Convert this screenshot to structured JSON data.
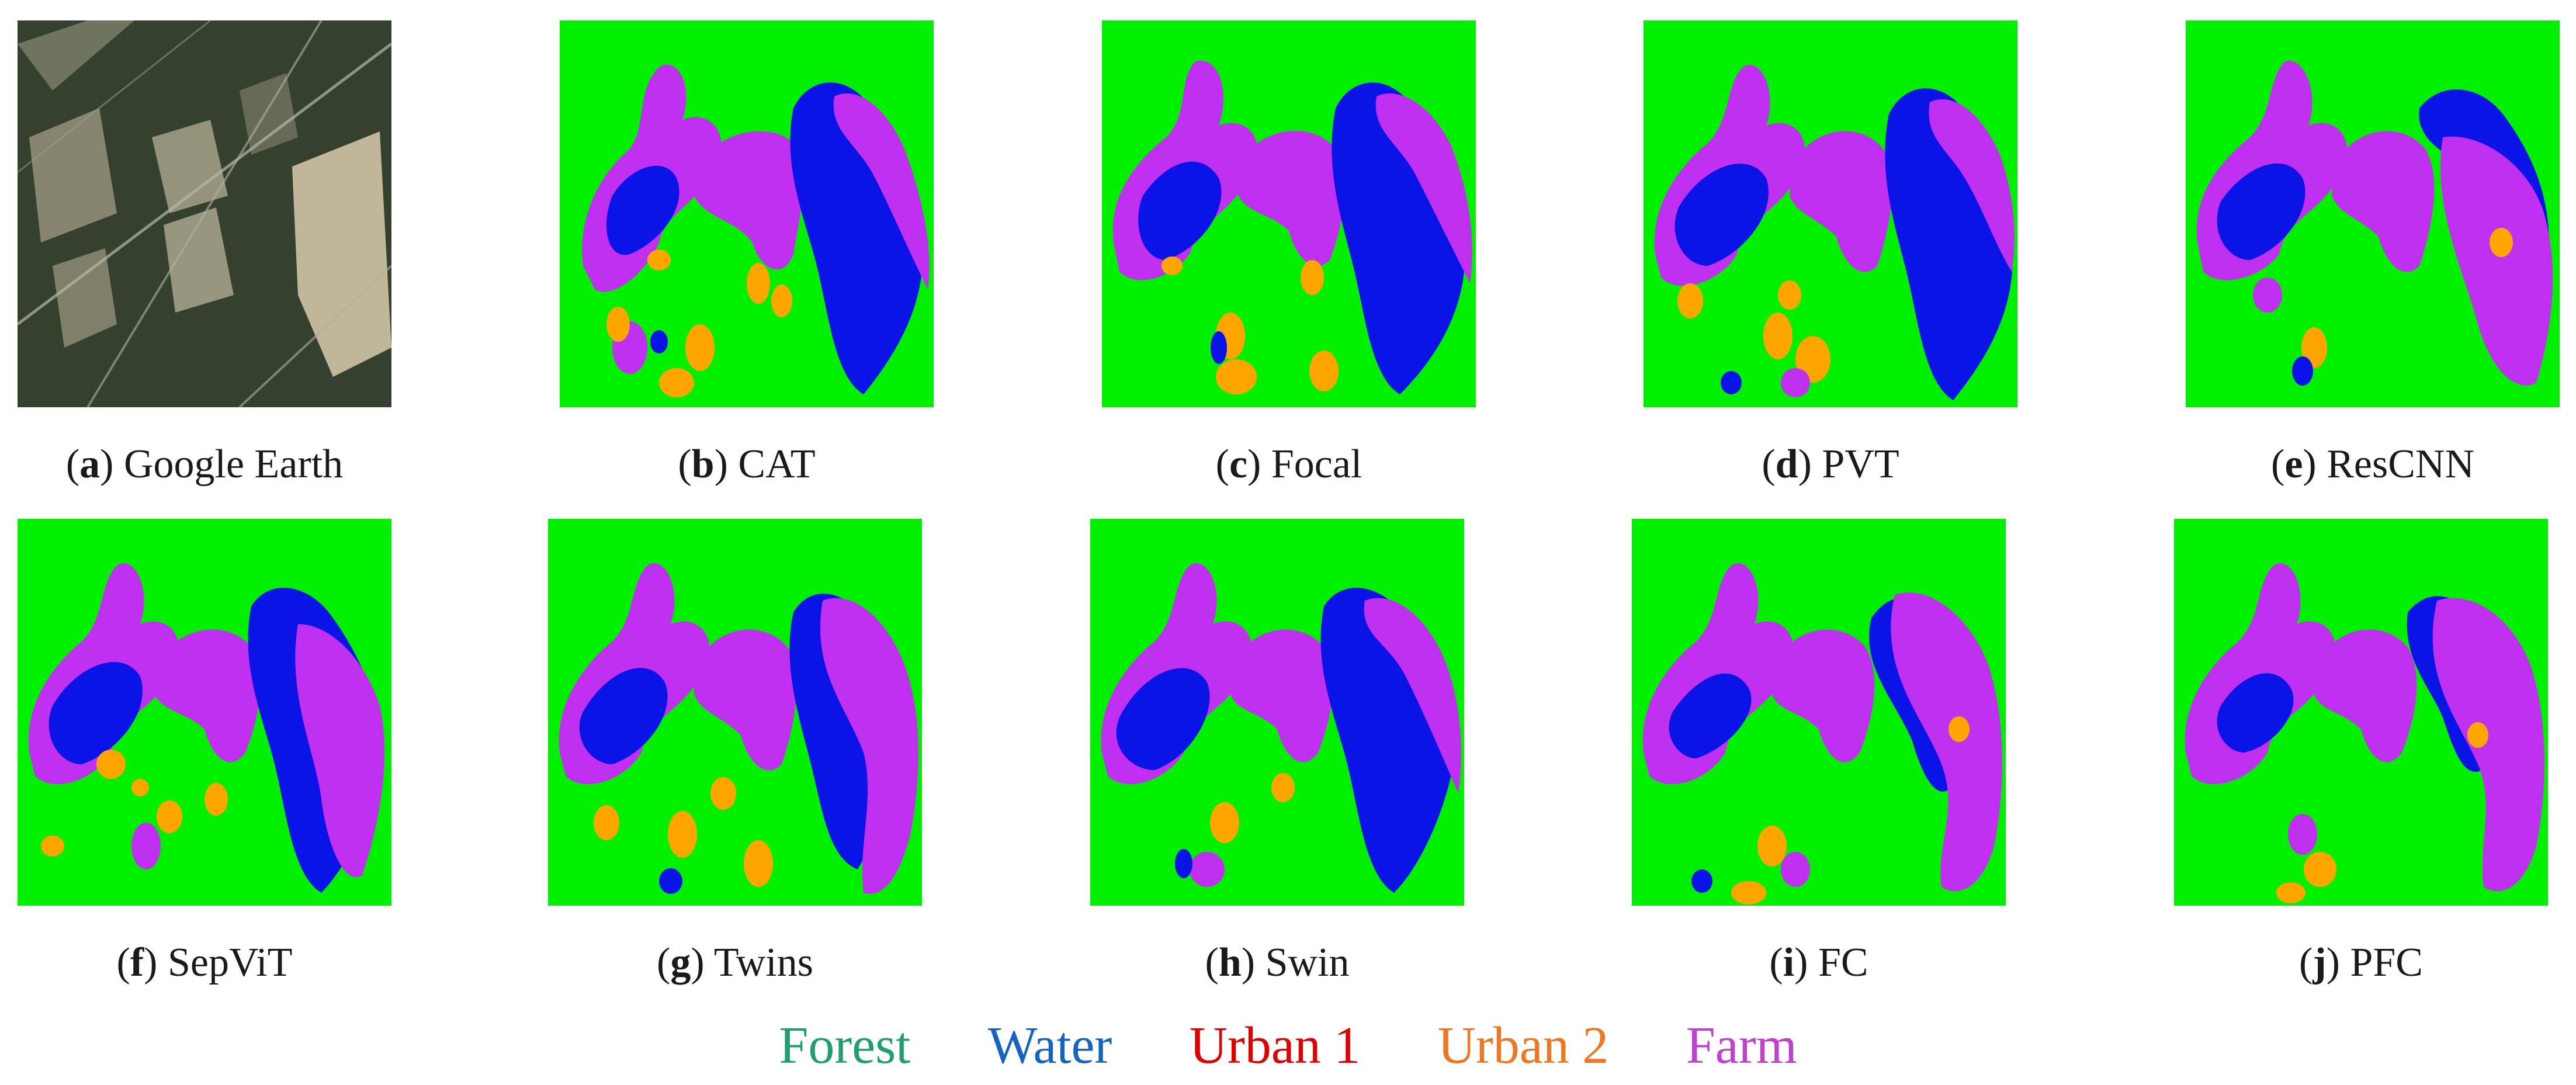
{
  "panels": [
    {
      "letter": "a",
      "title": "Google Earth",
      "kind": "satellite"
    },
    {
      "letter": "b",
      "title": "CAT",
      "kind": "map"
    },
    {
      "letter": "c",
      "title": "Focal",
      "kind": "map"
    },
    {
      "letter": "d",
      "title": "PVT",
      "kind": "map"
    },
    {
      "letter": "e",
      "title": "ResCNN",
      "kind": "map"
    },
    {
      "letter": "f",
      "title": "SepViT",
      "kind": "map"
    },
    {
      "letter": "g",
      "title": "Twins",
      "kind": "map"
    },
    {
      "letter": "h",
      "title": "Swin",
      "kind": "map"
    },
    {
      "letter": "i",
      "title": "FC",
      "kind": "map"
    },
    {
      "letter": "j",
      "title": "PFC",
      "kind": "map"
    }
  ],
  "legend": [
    {
      "label": "Forest",
      "color": "#1f9e6e"
    },
    {
      "label": "Water",
      "color": "#1565c0"
    },
    {
      "label": "Urban 1",
      "color": "#e00000"
    },
    {
      "label": "Urban 2",
      "color": "#ee7722"
    },
    {
      "label": "Farm",
      "color": "#c040d0"
    }
  ],
  "map_colors": {
    "forest": "#00f000",
    "water": "#0a14e6",
    "farm": "#c030f0",
    "urban": "#ffa500"
  }
}
